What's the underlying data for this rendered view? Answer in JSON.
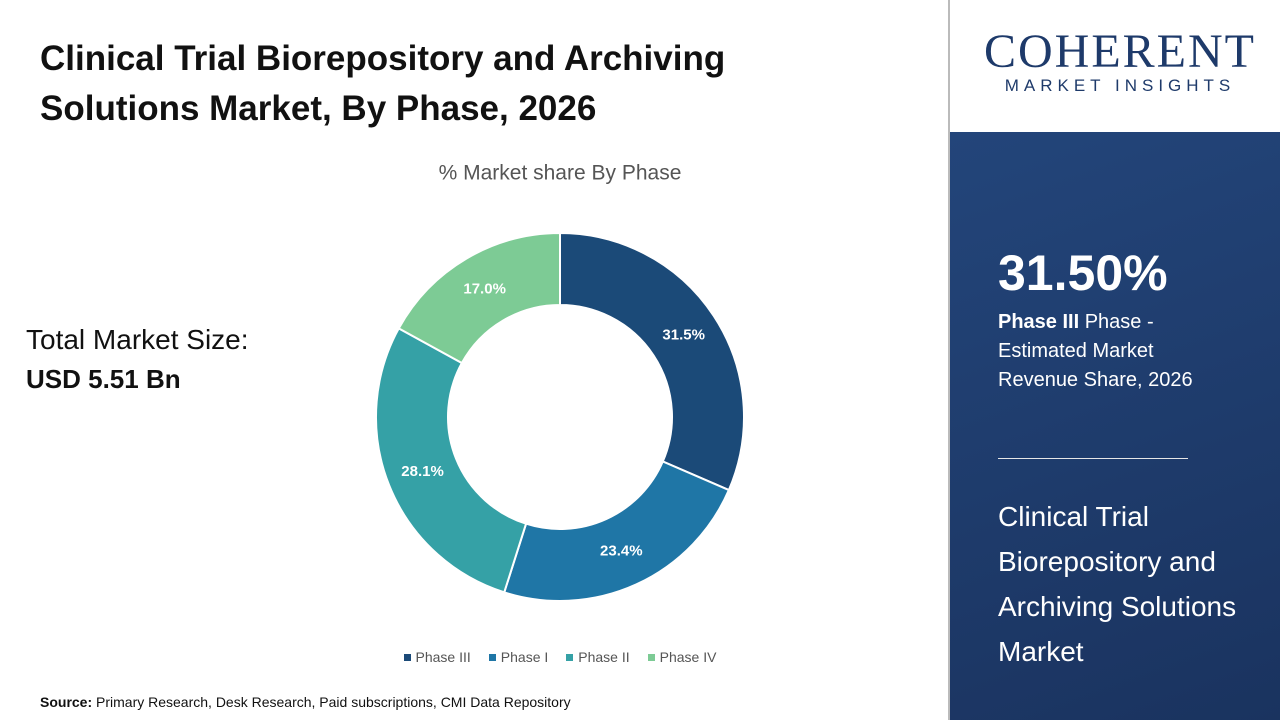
{
  "title": "Clinical Trial Biorepository and Archiving Solutions Market, By Phase, 2026",
  "market_size": {
    "label": "Total Market Size:",
    "value": "USD 5.51 Bn"
  },
  "chart_data": {
    "type": "donut",
    "title": "% Market share By Phase",
    "categories": [
      "Phase III",
      "Phase I",
      "Phase II",
      "Phase IV"
    ],
    "values": [
      31.5,
      23.4,
      28.1,
      17.0
    ],
    "value_labels": [
      "31.5%",
      "23.4%",
      "28.1%",
      "17.0%"
    ],
    "colors": [
      "#1b4a78",
      "#1f76a6",
      "#35a1a6",
      "#7dcb95"
    ],
    "legend": "bottom"
  },
  "source": {
    "label": "Source:",
    "text": "Primary Research, Desk Research, Paid subscriptions, CMI Data Repository"
  },
  "sidebar": {
    "logo_main": "COHERENT",
    "logo_sub": "MARKET INSIGHTS",
    "highlight_value": "31.50%",
    "highlight_segment": "Phase III",
    "highlight_text": " Phase - Estimated Market Revenue Share, 2026",
    "market_name": "Clinical Trial Biorepository and Archiving Solutions Market"
  }
}
